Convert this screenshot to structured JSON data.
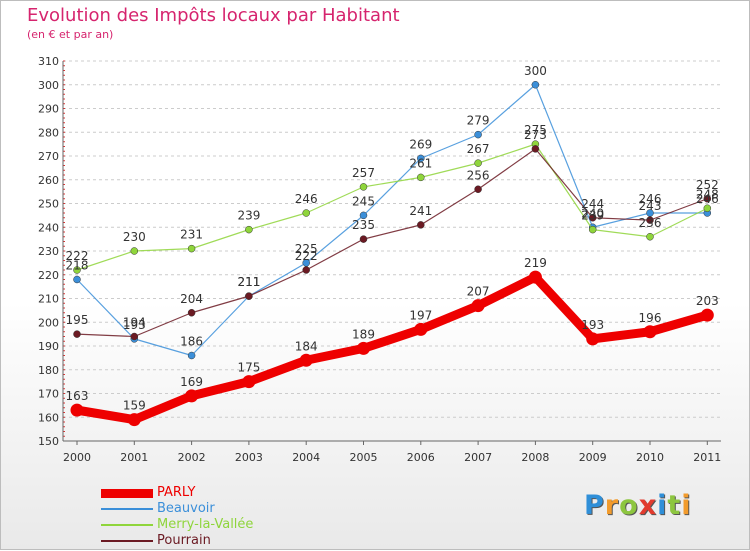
{
  "title": "Evolution des Impôts locaux par Habitant",
  "subtitle": "(en € et par an)",
  "logo": {
    "letters": [
      {
        "ch": "P",
        "color": "#2f8fd8"
      },
      {
        "ch": "r",
        "color": "#f29b2c"
      },
      {
        "ch": "o",
        "color": "#8dc63f"
      },
      {
        "ch": "x",
        "color": "#e23b2e"
      },
      {
        "ch": "i",
        "color": "#2f8fd8"
      },
      {
        "ch": "t",
        "color": "#8dc63f"
      },
      {
        "ch": "i",
        "color": "#f29b2c"
      }
    ]
  },
  "chart_data": {
    "type": "line",
    "title": "Evolution des Impôts locaux par Habitant",
    "subtitle": "(en € et par an)",
    "xlabel": "",
    "ylabel": "",
    "ylim": [
      150,
      310
    ],
    "y_ticks": [
      150,
      160,
      170,
      180,
      190,
      200,
      210,
      220,
      230,
      240,
      250,
      260,
      270,
      280,
      290,
      300,
      310
    ],
    "grid": "horizontal",
    "legend_position": "bottom-left",
    "categories": [
      "2000",
      "2001",
      "2002",
      "2003",
      "2004",
      "2005",
      "2006",
      "2007",
      "2008",
      "2009",
      "2010",
      "2011"
    ],
    "series": [
      {
        "name": "PARLY",
        "color": "#ee0000",
        "values": [
          163,
          159,
          169,
          175,
          184,
          189,
          197,
          207,
          219,
          193,
          196,
          203
        ]
      },
      {
        "name": "Beauvoir",
        "color": "#3b8fd9",
        "values": [
          218,
          193,
          186,
          211,
          225,
          245,
          269,
          279,
          300,
          240,
          246,
          246
        ]
      },
      {
        "name": "Merry-la-Vallée",
        "color": "#8fd53b",
        "values": [
          222,
          230,
          231,
          239,
          246,
          257,
          261,
          267,
          275,
          239,
          236,
          248
        ]
      },
      {
        "name": "Pourrain",
        "color": "#6b1a23",
        "values": [
          195,
          194,
          204,
          211,
          222,
          235,
          241,
          256,
          273,
          244,
          243,
          252
        ]
      }
    ]
  }
}
